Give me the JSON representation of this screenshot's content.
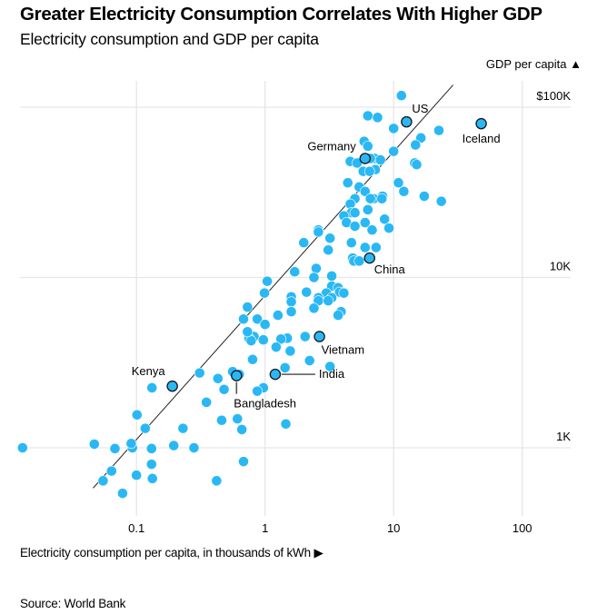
{
  "header": {
    "title": "Greater Electricity Consumption Correlates With Higher GDP",
    "subtitle": "Electricity consumption and GDP per capita"
  },
  "footer": {
    "source": "Source: World Bank"
  },
  "colors": {
    "dot": "#2ab8f5",
    "highlight_stroke": "#1a1a1a",
    "trend_line": "#222222",
    "grid": "#e6e6e6"
  },
  "chart_data": {
    "type": "scatter",
    "title": "Greater Electricity Consumption Correlates With Higher GDP",
    "subtitle": "Electricity consumption and GDP per capita",
    "xlabel": "Electricity consumption per capita, in thousands of kWh ▶",
    "ylabel": "GDP per capita ▲",
    "x_scale": "log",
    "y_scale": "log",
    "xlim": [
      0.013,
      200
    ],
    "ylim": [
      460,
      140000
    ],
    "x_ticks": [
      {
        "value": 0.1,
        "label": "0.1"
      },
      {
        "value": 1,
        "label": "1"
      },
      {
        "value": 10,
        "label": "10"
      },
      {
        "value": 100,
        "label": "100"
      }
    ],
    "y_ticks": [
      {
        "value": 100000,
        "label": "$100K"
      },
      {
        "value": 10000,
        "label": "10K"
      },
      {
        "value": 1000,
        "label": "1K"
      }
    ],
    "grid": true,
    "trend_line": {
      "x": [
        0.046,
        29
      ],
      "y": [
        580,
        135000
      ]
    },
    "labeled_points": [
      {
        "name": "US",
        "x": 12.6,
        "y": 82000
      },
      {
        "name": "Iceland",
        "x": 48,
        "y": 80000
      },
      {
        "name": "Germany",
        "x": 6.0,
        "y": 50000
      },
      {
        "name": "China",
        "x": 6.5,
        "y": 13000
      },
      {
        "name": "Vietnam",
        "x": 2.65,
        "y": 4500
      },
      {
        "name": "India",
        "x": 1.2,
        "y": 2700
      },
      {
        "name": "Bangladesh",
        "x": 0.6,
        "y": 2650
      },
      {
        "name": "Kenya",
        "x": 0.19,
        "y": 2300
      }
    ],
    "points": [
      [
        11.5,
        117000
      ],
      [
        6.3,
        89000
      ],
      [
        7.5,
        87000
      ],
      [
        10.0,
        75000
      ],
      [
        22.5,
        73000
      ],
      [
        16.3,
        66000
      ],
      [
        5.9,
        63000
      ],
      [
        6.3,
        59000
      ],
      [
        10.0,
        55000
      ],
      [
        14.8,
        60000
      ],
      [
        7.1,
        50000
      ],
      [
        6.6,
        50000
      ],
      [
        7.9,
        49000
      ],
      [
        4.6,
        48000
      ],
      [
        14.6,
        47000
      ],
      [
        15.1,
        46000
      ],
      [
        5.2,
        47000
      ],
      [
        7.2,
        43000
      ],
      [
        5.8,
        42000
      ],
      [
        6.5,
        42000
      ],
      [
        4.4,
        36000
      ],
      [
        5.4,
        34000
      ],
      [
        10.9,
        36000
      ],
      [
        6.0,
        32000
      ],
      [
        12.0,
        32000
      ],
      [
        8.2,
        30000
      ],
      [
        7.0,
        29000
      ],
      [
        6.6,
        29000
      ],
      [
        8.1,
        29000
      ],
      [
        5.0,
        29000
      ],
      [
        17.3,
        30000
      ],
      [
        23.5,
        28000
      ],
      [
        4.6,
        27000
      ],
      [
        6.3,
        25000
      ],
      [
        4.7,
        24000
      ],
      [
        5.0,
        24000
      ],
      [
        4.1,
        23000
      ],
      [
        8.5,
        22000
      ],
      [
        6.0,
        21000
      ],
      [
        4.3,
        21000
      ],
      [
        5.0,
        20000
      ],
      [
        6.8,
        19000
      ],
      [
        9.2,
        19500
      ],
      [
        2.6,
        19000
      ],
      [
        2.6,
        18500
      ],
      [
        3.2,
        17000
      ],
      [
        4.7,
        16000
      ],
      [
        2.0,
        16000
      ],
      [
        6.0,
        15000
      ],
      [
        7.3,
        15000
      ],
      [
        3.1,
        14500
      ],
      [
        4.8,
        13000
      ],
      [
        4.9,
        12500
      ],
      [
        5.4,
        12500
      ],
      [
        2.5,
        11300
      ],
      [
        1.7,
        10800
      ],
      [
        3.3,
        10200
      ],
      [
        2.4,
        10000
      ],
      [
        1.04,
        9500
      ],
      [
        3.3,
        8900
      ],
      [
        3.7,
        8700
      ],
      [
        0.99,
        8100
      ],
      [
        3.8,
        8200
      ],
      [
        2.1,
        8200
      ],
      [
        4.1,
        8100
      ],
      [
        3.0,
        8100
      ],
      [
        2.6,
        7600
      ],
      [
        3.3,
        7600
      ],
      [
        2.6,
        7300
      ],
      [
        3.1,
        7300
      ],
      [
        1.6,
        7700
      ],
      [
        1.6,
        7200
      ],
      [
        0.73,
        6700
      ],
      [
        2.4,
        6600
      ],
      [
        1.6,
        6300
      ],
      [
        3.9,
        6300
      ],
      [
        1.26,
        6000
      ],
      [
        3.7,
        6000
      ],
      [
        0.68,
        5700
      ],
      [
        0.87,
        5700
      ],
      [
        1.0,
        5300
      ],
      [
        2.05,
        4500
      ],
      [
        1.49,
        4400
      ],
      [
        0.82,
        4500
      ],
      [
        0.75,
        4400
      ],
      [
        0.78,
        4250
      ],
      [
        0.73,
        4800
      ],
      [
        1.33,
        4350
      ],
      [
        0.97,
        4300
      ],
      [
        1.22,
        3900
      ],
      [
        1.57,
        3700
      ],
      [
        0.8,
        3300
      ],
      [
        1.43,
        2950
      ],
      [
        0.56,
        2800
      ],
      [
        2.22,
        3250
      ],
      [
        3.2,
        3000
      ],
      [
        0.97,
        2250
      ],
      [
        0.63,
        2700
      ],
      [
        0.31,
        2750
      ],
      [
        0.43,
        2550
      ],
      [
        0.132,
        2250
      ],
      [
        0.87,
        2150
      ],
      [
        0.48,
        2200
      ],
      [
        0.35,
        1850
      ],
      [
        0.101,
        1560
      ],
      [
        0.61,
        1480
      ],
      [
        0.46,
        1450
      ],
      [
        0.117,
        1300
      ],
      [
        0.23,
        1300
      ],
      [
        1.45,
        1380
      ],
      [
        0.66,
        1280
      ],
      [
        0.013,
        1000
      ],
      [
        0.047,
        1050
      ],
      [
        0.068,
        990
      ],
      [
        0.093,
        1000
      ],
      [
        0.091,
        1060
      ],
      [
        0.131,
        990
      ],
      [
        0.195,
        1030
      ],
      [
        0.28,
        1000
      ],
      [
        0.064,
        730
      ],
      [
        0.055,
        640
      ],
      [
        0.1,
        690
      ],
      [
        0.131,
        800
      ],
      [
        0.133,
        660
      ],
      [
        0.42,
        640
      ],
      [
        0.68,
        830
      ],
      [
        0.078,
        540
      ]
    ]
  }
}
